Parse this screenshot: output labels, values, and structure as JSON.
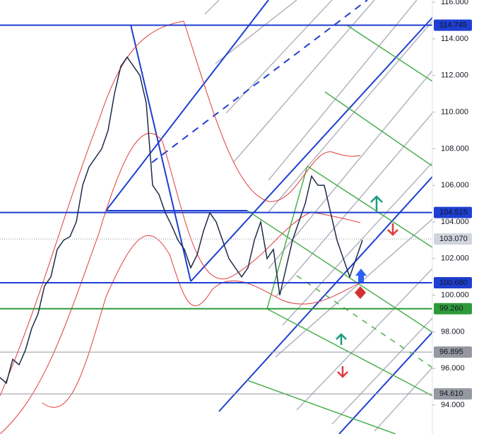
{
  "chart_data": {
    "type": "line",
    "series": [
      {
        "color": "#1e2b47",
        "values": [
          95.5,
          95.2,
          96.5,
          96.2,
          97,
          98.2,
          99,
          100.5,
          101,
          102.5,
          103,
          103.2,
          104,
          106,
          107,
          107.5,
          108,
          109,
          111,
          112.5,
          113,
          112.5,
          112,
          110.5,
          106,
          105.5,
          104.5,
          103.8,
          103,
          102.5,
          101.5,
          102.2,
          103.5,
          104.5,
          104,
          103,
          102,
          101.5,
          101,
          101.5,
          103,
          104,
          102,
          102.5,
          100,
          101.5,
          103,
          104,
          105,
          106.5,
          106,
          106,
          104.5,
          103,
          102,
          101,
          102,
          103
        ]
      }
    ],
    "ylim": [
      92.42,
      116.12
    ],
    "yticks": [
      {
        "value": 94,
        "label": "94.000"
      },
      {
        "value": 96,
        "label": "96.000"
      },
      {
        "value": 98,
        "label": "98.000"
      },
      {
        "value": 100,
        "label": "100.000"
      },
      {
        "value": 102,
        "label": "102.000"
      },
      {
        "value": 104,
        "label": "104.000"
      },
      {
        "value": 106,
        "label": "106.000"
      },
      {
        "value": 108,
        "label": "108.000"
      },
      {
        "value": 110,
        "label": "110.000"
      },
      {
        "value": 112,
        "label": "112.000"
      },
      {
        "value": 114,
        "label": "114.000"
      },
      {
        "value": 116,
        "label": "116.000"
      }
    ],
    "levels": [
      {
        "value": 114.745,
        "label": "114.745",
        "color": "#1e3fd1"
      },
      {
        "value": 104.515,
        "label": "104.515",
        "color": "#1e3fd1"
      },
      {
        "value": 103.07,
        "label": "103.070",
        "color": "#d1d4dc"
      },
      {
        "value": 100.68,
        "label": "100.680",
        "color": "#1e3fd1"
      },
      {
        "value": 99.26,
        "label": "99.260",
        "color": "#2e9b3a"
      },
      {
        "value": 96.895,
        "label": "96.895",
        "color": "#9598a1"
      },
      {
        "value": 94.61,
        "label": "94.610",
        "color": "#9598a1"
      }
    ]
  }
}
